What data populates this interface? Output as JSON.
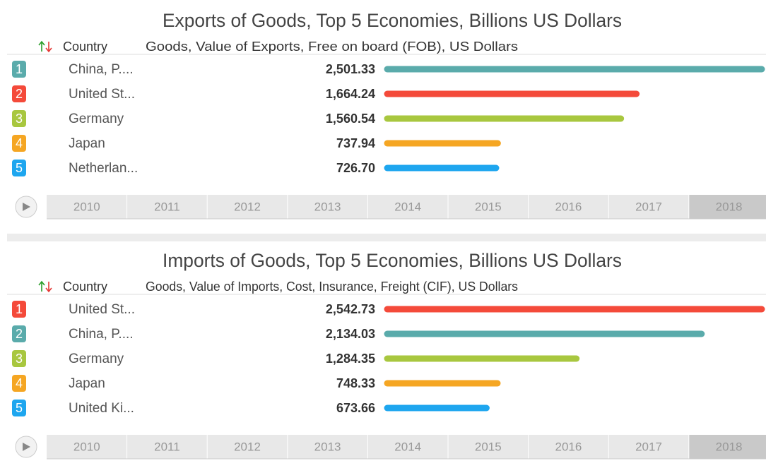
{
  "chart_data": [
    {
      "type": "bar",
      "title": "Exports of Goods, Top 5 Economies, Billions US Dollars",
      "header_country": "Country",
      "header_value": "Goods, Value of Exports, Free on board (FOB), US Dollars",
      "ranks": [
        1,
        2,
        3,
        4,
        5
      ],
      "categories": [
        "China, P....",
        "United St...",
        "Germany",
        "Japan",
        "Netherlan..."
      ],
      "values": [
        2501.33,
        1664.24,
        1560.54,
        737.94,
        726.7
      ],
      "value_labels": [
        "2,501.33",
        "1,664.24",
        "1,560.54",
        "737.94",
        "726.70"
      ],
      "colors": [
        "#5aabab",
        "#f44a3a",
        "#a8c73f",
        "#f5a623",
        "#1ea6ef"
      ],
      "years": [
        2010,
        2011,
        2012,
        2013,
        2014,
        2015,
        2016,
        2017,
        2018
      ],
      "active_year": 2018
    },
    {
      "type": "bar",
      "title": "Imports of Goods, Top 5 Economies, Billions US Dollars",
      "header_country": "Country",
      "header_value": "Goods, Value of Imports, Cost, Insurance, Freight (CIF), US Dollars",
      "ranks": [
        1,
        2,
        3,
        4,
        5
      ],
      "categories": [
        "United St...",
        "China, P....",
        "Germany",
        "Japan",
        "United Ki..."
      ],
      "values": [
        2542.73,
        2134.03,
        1284.35,
        748.33,
        673.66
      ],
      "value_labels": [
        "2,542.73",
        "2,134.03",
        "1,284.35",
        "748.33",
        "673.66"
      ],
      "colors": [
        "#f44a3a",
        "#5aabab",
        "#a8c73f",
        "#f5a623",
        "#1ea6ef"
      ],
      "years": [
        2010,
        2011,
        2012,
        2013,
        2014,
        2015,
        2016,
        2017,
        2018
      ],
      "active_year": 2018
    }
  ]
}
